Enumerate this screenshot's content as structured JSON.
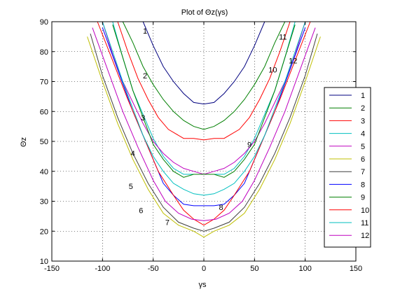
{
  "chart_data": {
    "type": "line",
    "title": "Plot of Θz(γs)",
    "xlabel": "γs",
    "ylabel": "Θz",
    "xlim": [
      -150,
      150
    ],
    "ylim": [
      10,
      90
    ],
    "xticks": [
      -150,
      -100,
      -50,
      0,
      50,
      100,
      150
    ],
    "yticks": [
      10,
      20,
      30,
      40,
      50,
      60,
      70,
      80,
      90
    ],
    "xtick_labels": [
      "-150",
      "-100",
      "-50",
      "0",
      "50",
      "100",
      "150"
    ],
    "ytick_labels": [
      "10",
      "20",
      "30",
      "40",
      "50",
      "60",
      "70",
      "80",
      "90"
    ],
    "grid": true,
    "legend_position": "right",
    "series": [
      {
        "name": "1",
        "color": "#00007f",
        "x": [
          -60,
          -50,
          -40,
          -30,
          -20,
          -10,
          0,
          10,
          20,
          30,
          40,
          50,
          60
        ],
        "y": [
          90,
          82,
          75,
          70,
          66,
          63,
          62.5,
          63,
          66,
          70,
          75,
          82,
          90
        ]
      },
      {
        "name": "2",
        "color": "#007f00",
        "x": [
          -80,
          -70,
          -60,
          -50,
          -40,
          -30,
          -20,
          -10,
          0,
          10,
          20,
          30,
          40,
          50,
          60,
          70,
          80
        ],
        "y": [
          90,
          83,
          75,
          69,
          64,
          60,
          57,
          55,
          54,
          55,
          57,
          60,
          64,
          69,
          75,
          83,
          90
        ]
      },
      {
        "name": "3",
        "color": "#ff0000",
        "x": [
          -85,
          -75,
          -65,
          -55,
          -45,
          -35,
          -20,
          -10,
          0,
          10,
          20,
          35,
          45,
          55,
          65,
          75,
          85
        ],
        "y": [
          90,
          80,
          71,
          64,
          58,
          54,
          51,
          51,
          50.5,
          51,
          51,
          54,
          58,
          64,
          71,
          80,
          90
        ]
      },
      {
        "name": "4",
        "color": "#00bfbf",
        "x": [
          -90,
          -80,
          -70,
          -60,
          -50,
          -40,
          -30,
          -20,
          -10,
          0,
          10,
          20,
          30,
          40,
          50,
          60,
          70,
          80,
          90
        ],
        "y": [
          90,
          78,
          67,
          59,
          51,
          45,
          41,
          39,
          39,
          39,
          39,
          39,
          41,
          45,
          51,
          59,
          67,
          78,
          90
        ]
      },
      {
        "name": "5",
        "color": "#bf00bf",
        "x": [
          -100,
          -90,
          -80,
          -70,
          -60,
          -50,
          -40,
          -30,
          -20,
          -10,
          0,
          10,
          20,
          30,
          40,
          50,
          60,
          70,
          80,
          90,
          100
        ],
        "y": [
          90,
          79,
          70,
          63,
          56,
          50,
          46,
          43,
          41,
          40,
          39,
          40,
          41,
          43,
          46,
          50,
          56,
          63,
          70,
          79,
          90
        ]
      },
      {
        "name": "6",
        "color": "#bfbf00",
        "x": [
          -115,
          -100,
          -85,
          -70,
          -55,
          -40,
          -25,
          -10,
          0,
          10,
          25,
          40,
          55,
          70,
          85,
          100,
          115
        ],
        "y": [
          85,
          70,
          56,
          44,
          34,
          26,
          22,
          20,
          18,
          20,
          22,
          26,
          34,
          44,
          56,
          70,
          85
        ]
      },
      {
        "name": "7",
        "color": "#3f3f3f",
        "x": [
          -112,
          -100,
          -85,
          -70,
          -55,
          -40,
          -25,
          -10,
          0,
          10,
          25,
          40,
          55,
          70,
          85,
          100,
          112
        ],
        "y": [
          86,
          72,
          58,
          46,
          36,
          28,
          23,
          21,
          20,
          21,
          23,
          28,
          36,
          46,
          58,
          72,
          86
        ]
      },
      {
        "name": "8",
        "color": "#0000ff",
        "x": [
          -100,
          -85,
          -70,
          -55,
          -40,
          -30,
          -20,
          -10,
          0,
          10,
          20,
          30,
          40,
          55,
          70,
          85,
          100
        ],
        "y": [
          88,
          74,
          60,
          48,
          36,
          32,
          29,
          28.5,
          28.5,
          28.5,
          29,
          32,
          36,
          48,
          60,
          74,
          88
        ]
      },
      {
        "name": "9",
        "color": "#007f00",
        "x": [
          -90,
          -80,
          -70,
          -60,
          -50,
          -40,
          -30,
          -20,
          -10,
          0,
          10,
          20,
          30,
          40,
          50,
          60,
          70,
          80,
          90
        ],
        "y": [
          89,
          78,
          67,
          58,
          49,
          44,
          40,
          38,
          39,
          39,
          39,
          38,
          40,
          44,
          49,
          58,
          67,
          78,
          89
        ]
      },
      {
        "name": "10",
        "color": "#ff0000",
        "x": [
          -105,
          -90,
          -75,
          -60,
          -45,
          -30,
          -20,
          -10,
          0,
          10,
          20,
          30,
          45,
          60,
          75,
          90,
          105
        ],
        "y": [
          90,
          77,
          64,
          52,
          40,
          32,
          27,
          24,
          22,
          24,
          27,
          32,
          40,
          52,
          64,
          77,
          90
        ]
      },
      {
        "name": "11",
        "color": "#00bfbf",
        "x": [
          -100,
          -90,
          -80,
          -70,
          -60,
          -50,
          -40,
          -30,
          -20,
          -10,
          0,
          10,
          20,
          30,
          40,
          50,
          60,
          70,
          80,
          90,
          100
        ],
        "y": [
          90,
          80,
          70,
          61,
          52,
          45,
          40,
          36,
          34,
          32.5,
          32,
          32.5,
          34,
          36,
          40,
          45,
          52,
          61,
          70,
          80,
          90
        ]
      },
      {
        "name": "12",
        "color": "#bf00bf",
        "x": [
          -110,
          -95,
          -80,
          -65,
          -50,
          -38,
          -25,
          -12,
          0,
          12,
          25,
          38,
          50,
          65,
          80,
          95,
          110
        ],
        "y": [
          88,
          74,
          60,
          48,
          37,
          30,
          26,
          24,
          23.5,
          24,
          26,
          30,
          37,
          48,
          60,
          74,
          88
        ]
      }
    ],
    "contour_labels": [
      {
        "text": "1",
        "x": -58,
        "y": 87
      },
      {
        "text": "2",
        "x": -58,
        "y": 72
      },
      {
        "text": "3",
        "x": -60,
        "y": 58
      },
      {
        "text": "4",
        "x": -70,
        "y": 46
      },
      {
        "text": "5",
        "x": -72,
        "y": 35
      },
      {
        "text": "6",
        "x": -62,
        "y": 27
      },
      {
        "text": "7",
        "x": -36,
        "y": 23
      },
      {
        "text": "8",
        "x": 17,
        "y": 28
      },
      {
        "text": "9",
        "x": 45,
        "y": 49
      },
      {
        "text": "10",
        "x": 68,
        "y": 74
      },
      {
        "text": "11",
        "x": 78,
        "y": 85
      },
      {
        "text": "12",
        "x": 88,
        "y": 77
      }
    ]
  }
}
